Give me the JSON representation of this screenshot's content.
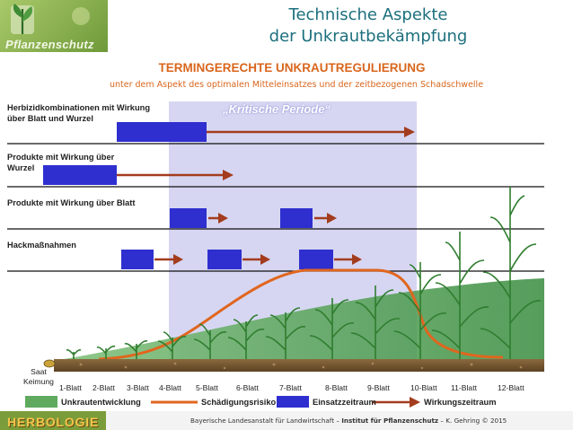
{
  "logo": {
    "text": "Pflanzenschutz"
  },
  "title": {
    "line1": "Technische Aspekte",
    "line2": "der Unkrautbekämpfung"
  },
  "subtitle": "TERMINGERECHTE UNKRAUTREGULIERUNG",
  "subsubtitle": "unter dem Aspekt des optimalen Mitteleinsatzes und der zeitbezogenen Schadschwelle",
  "critical_period": "„Kritische Periode“",
  "rows": [
    {
      "line1": "Herbizidkombinationen mit Wirkung",
      "line2": "über Blatt und Wurzel"
    },
    {
      "line1": "Produkte mit Wirkung über",
      "line2": "Wurzel"
    },
    {
      "line1": "Produkte mit Wirkung über Blatt",
      "line2": ""
    },
    {
      "line1": "Hackmaßnahmen",
      "line2": ""
    }
  ],
  "stages": [
    "1-Blatt",
    "2-Blatt",
    "3-Blatt",
    "4-Blatt",
    "5-Blatt",
    "6-Blatt",
    "7-Blatt",
    "8-Blatt",
    "9-Blatt",
    "10-Blatt",
    "11-Blatt",
    "12-Blatt"
  ],
  "saat": {
    "line1": "Saat",
    "line2": "Keimung"
  },
  "legend": {
    "weed": "Unkrautentwicklung",
    "risk": "Schädigungsrisiko",
    "use": "Einsatzzeitraum",
    "effect": "Wirkungszeitraum"
  },
  "footer": {
    "part1": "Bayerische Landesanstalt für Landwirtschaft",
    "sep1": "–",
    "part2": "Institut für Pflanzenschutz",
    "sep2": "–",
    "part3": "K. Gehring © 2015"
  },
  "brand": "HERBOLOGIE",
  "colors": {
    "blue": "#2f2fcf",
    "arrow": "#a33c1e",
    "risk": "#e0661f",
    "weed": "#5faa5e",
    "critical": "#d6d6f2",
    "title": "#1c6f7d",
    "orange": "#d9661d"
  }
}
